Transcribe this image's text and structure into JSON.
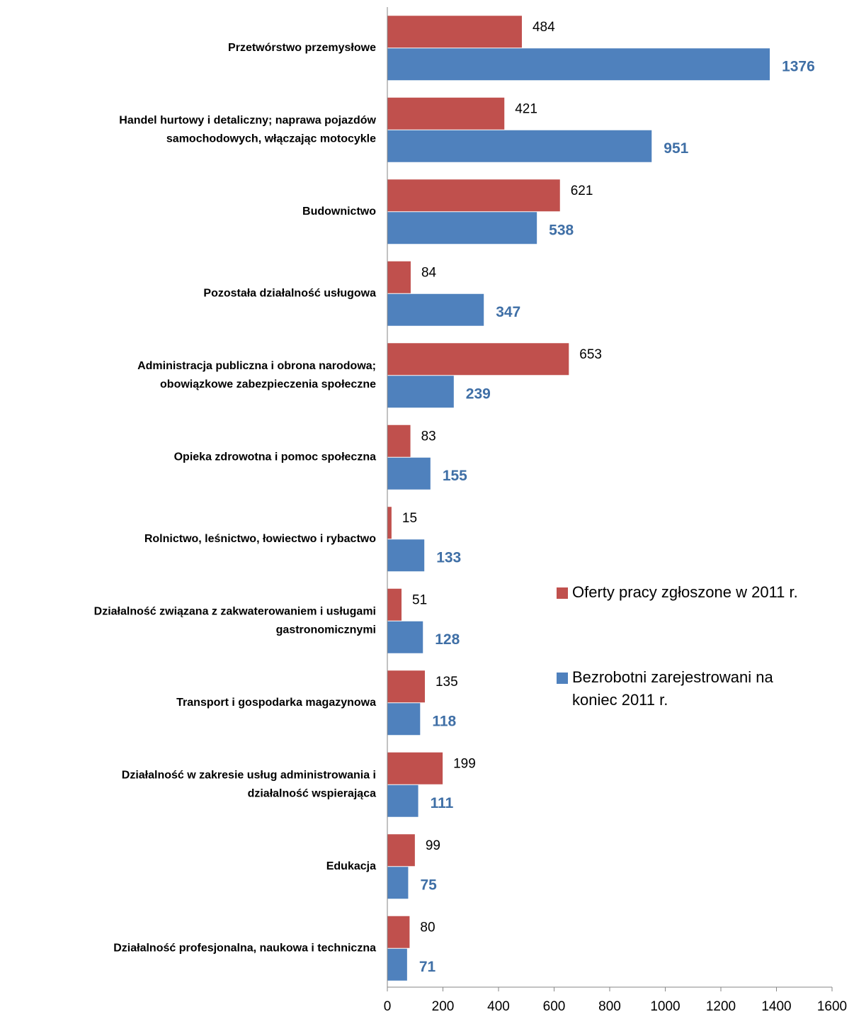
{
  "chart_data": {
    "type": "bar",
    "orientation": "horizontal",
    "categories": [
      "Przetwórstwo przemysłowe",
      "Handel hurtowy i detaliczny; naprawa pojazdów samochodowych, włączając motocykle",
      "Budownictwo",
      "Pozostała działalność usługowa",
      "Administracja publiczna i obrona narodowa; obowiązkowe zabezpieczenia społeczne",
      "Opieka zdrowotna i pomoc społeczna",
      "Rolnictwo, leśnictwo, łowiectwo i rybactwo",
      "Działalność związana z zakwaterowaniem i usługami gastronomicznymi",
      "Transport i gospodarka magazynowa",
      "Działalność w zakresie usług administrowania i działalność wspierająca",
      "Edukacja",
      "Działalność profesjonalna, naukowa i techniczna"
    ],
    "category_lines": [
      [
        "Przetwórstwo przemysłowe"
      ],
      [
        "Handel hurtowy i detaliczny; naprawa pojazdów",
        "samochodowych, włączając motocykle"
      ],
      [
        "Budownictwo"
      ],
      [
        "Pozostała działalność usługowa"
      ],
      [
        "Administracja publiczna i obrona narodowa;",
        "obowiązkowe zabezpieczenia społeczne"
      ],
      [
        "Opieka zdrowotna i pomoc społeczna"
      ],
      [
        "Rolnictwo, leśnictwo, łowiectwo i rybactwo"
      ],
      [
        "Działalność związana z zakwaterowaniem i usługami",
        "gastronomicznymi"
      ],
      [
        "Transport i gospodarka magazynowa"
      ],
      [
        "Działalność w zakresie usług administrowania i",
        "działalność wspierająca"
      ],
      [
        "Edukacja"
      ],
      [
        "Działalność profesjonalna, naukowa i techniczna"
      ]
    ],
    "series": [
      {
        "name": "Oferty pracy zgłoszone w 2011 r.",
        "color": "#C0504D",
        "values": [
          484,
          421,
          621,
          84,
          653,
          83,
          15,
          51,
          135,
          199,
          99,
          80
        ]
      },
      {
        "name": "Bezrobotni zarejestrowani na koniec 2011 r.",
        "name_lines": [
          "Bezrobotni zarejestrowani na",
          "koniec 2011 r."
        ],
        "color": "#4F81BD",
        "values": [
          1376,
          951,
          538,
          347,
          239,
          155,
          133,
          128,
          118,
          111,
          75,
          71
        ]
      }
    ],
    "xlim": [
      0,
      1600
    ],
    "xticks": [
      0,
      200,
      400,
      600,
      800,
      1000,
      1200,
      1400,
      1600
    ],
    "grid": false,
    "legend_position": "right"
  }
}
